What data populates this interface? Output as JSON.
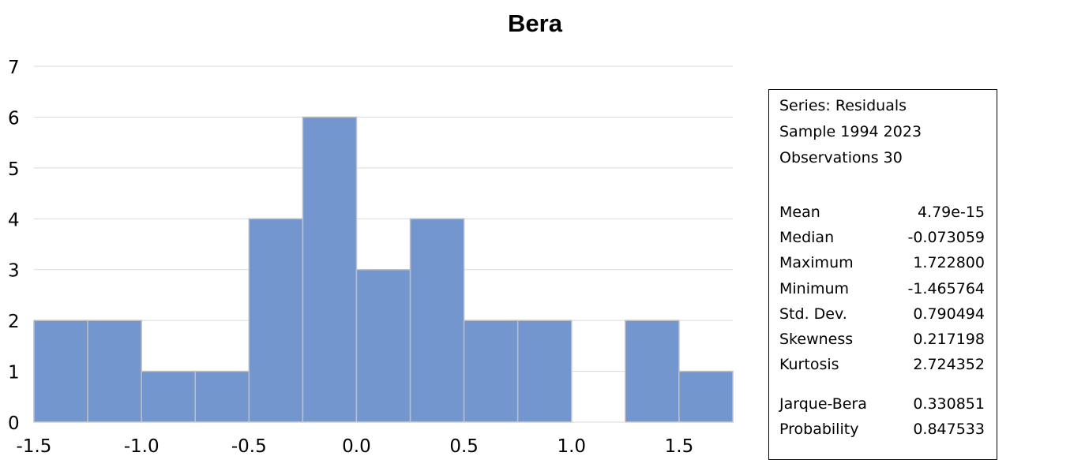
{
  "chart_data": {
    "type": "bar",
    "title": "Bera",
    "xlabel": "",
    "ylabel": "",
    "bin_edges": [
      -1.5,
      -1.25,
      -1.0,
      -0.75,
      -0.5,
      -0.25,
      0.0,
      0.25,
      0.5,
      0.75,
      1.0,
      1.25,
      1.5,
      1.75
    ],
    "values": [
      2,
      2,
      1,
      1,
      4,
      6,
      3,
      4,
      2,
      2,
      0,
      2,
      1
    ],
    "xlim": [
      -1.5,
      1.75
    ],
    "ylim": [
      0,
      7
    ],
    "x_ticks": [
      "-1.5",
      "-1.0",
      "-0.5",
      "0.0",
      "0.5",
      "1.0",
      "1.5"
    ],
    "y_ticks": [
      "0",
      "1",
      "2",
      "3",
      "4",
      "5",
      "6",
      "7"
    ],
    "grid": true,
    "legend": "none",
    "bar_color": "#7496CE",
    "bar_edge_color": "#BFBFBF",
    "grid_color": "#D9D9D9"
  },
  "stats": {
    "series": "Series: Residuals",
    "sample": "Sample 1994 2023",
    "observations": "Observations 30",
    "rows": [
      {
        "label": "Mean",
        "value": "4.79e-15"
      },
      {
        "label": "Median",
        "value": "-0.073059"
      },
      {
        "label": "Maximum",
        "value": "1.722800"
      },
      {
        "label": "Minimum",
        "value": "-1.465764"
      },
      {
        "label": "Std. Dev.",
        "value": "0.790494"
      },
      {
        "label": "Skewness",
        "value": "0.217198"
      },
      {
        "label": "Kurtosis",
        "value": "2.724352"
      }
    ],
    "tests": [
      {
        "label": "Jarque-Bera",
        "value": "0.330851"
      },
      {
        "label": "Probability",
        "value": "0.847533"
      }
    ]
  }
}
